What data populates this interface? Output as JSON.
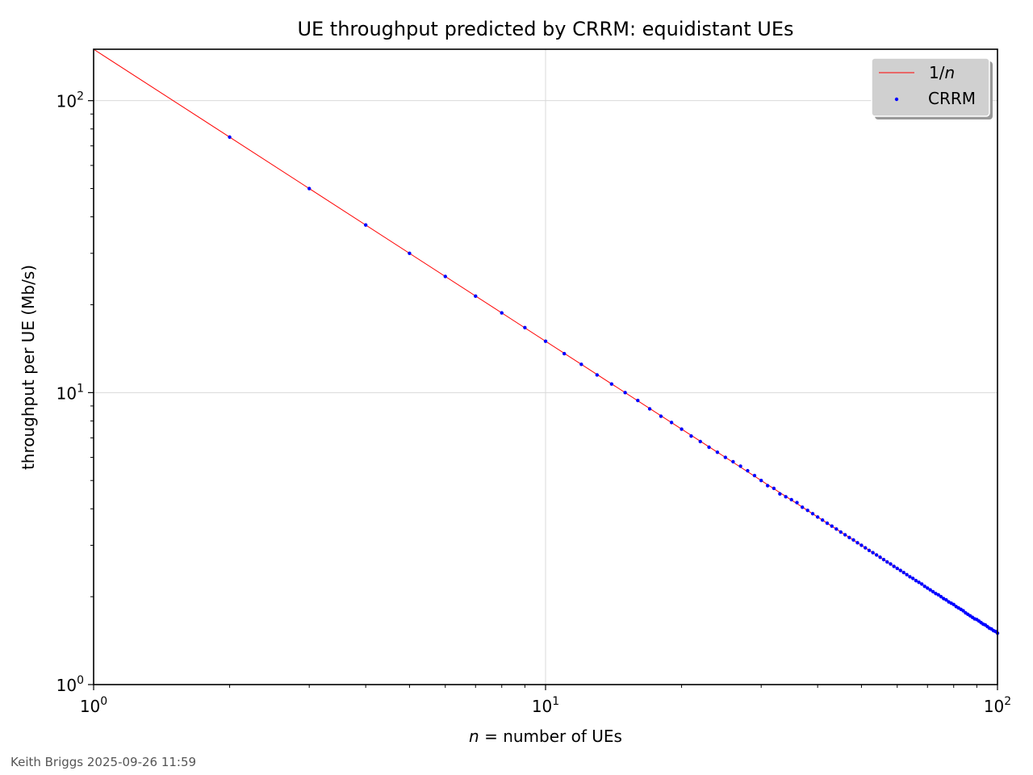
{
  "chart_data": {
    "type": "line",
    "title": "UE throughput predicted by CRRM: equidistant UEs",
    "xlabel": {
      "math": "n",
      "text": " = number of UEs"
    },
    "ylabel": "throughput per UE (Mb/s)",
    "xscale": "log",
    "yscale": "log",
    "xlim": [
      1,
      100
    ],
    "ylim": [
      1,
      150
    ],
    "x_ticks": [
      {
        "value": 1,
        "base": "10",
        "exp": "0"
      },
      {
        "value": 10,
        "base": "10",
        "exp": "1"
      },
      {
        "value": 100,
        "base": "10",
        "exp": "2"
      }
    ],
    "y_ticks": [
      {
        "value": 1,
        "base": "10",
        "exp": "0"
      },
      {
        "value": 10,
        "base": "10",
        "exp": "1"
      },
      {
        "value": 100,
        "base": "10",
        "exp": "2"
      }
    ],
    "grid": true,
    "legend_position": "top-right",
    "series": [
      {
        "name": "1/n",
        "label_parts": [
          "1/",
          "n"
        ],
        "kind": "line",
        "color": "#ff0000",
        "formula": "y = 150 / x",
        "x": [
          1,
          100
        ],
        "y": [
          150,
          1.5
        ]
      },
      {
        "name": "CRRM",
        "kind": "scatter",
        "color": "#0000ff",
        "x_range": [
          2,
          100
        ],
        "y": [
          75,
          50,
          37.5,
          30,
          25,
          21.4,
          18.75,
          16.7,
          15,
          13.6,
          12.5,
          11.5,
          10.7,
          10,
          9.4,
          8.8,
          8.3,
          7.9,
          7.5,
          7.1,
          6.8,
          6.5,
          6.25,
          6,
          5.8,
          5.6,
          5.4,
          5.2,
          5,
          4.8,
          4.7,
          4.5,
          4.4,
          4.3,
          4.2,
          4.05,
          3.95,
          3.85,
          3.75,
          3.66,
          3.57,
          3.49,
          3.41,
          3.33,
          3.26,
          3.19,
          3.13,
          3.06,
          3,
          2.94,
          2.88,
          2.83,
          2.78,
          2.73,
          2.68,
          2.63,
          2.59,
          2.54,
          2.5,
          2.46,
          2.42,
          2.38,
          2.34,
          2.31,
          2.27,
          2.24,
          2.21,
          2.17,
          2.14,
          2.11,
          2.08,
          2.05,
          2.03,
          2,
          1.97,
          1.95,
          1.92,
          1.9,
          1.88,
          1.85,
          1.83,
          1.81,
          1.79,
          1.76,
          1.74,
          1.72,
          1.7,
          1.68,
          1.67,
          1.65,
          1.63,
          1.61,
          1.6,
          1.58,
          1.56,
          1.55,
          1.53,
          1.52,
          1.5
        ]
      }
    ]
  },
  "footer": "Keith Briggs 2025-09-26 11:59"
}
